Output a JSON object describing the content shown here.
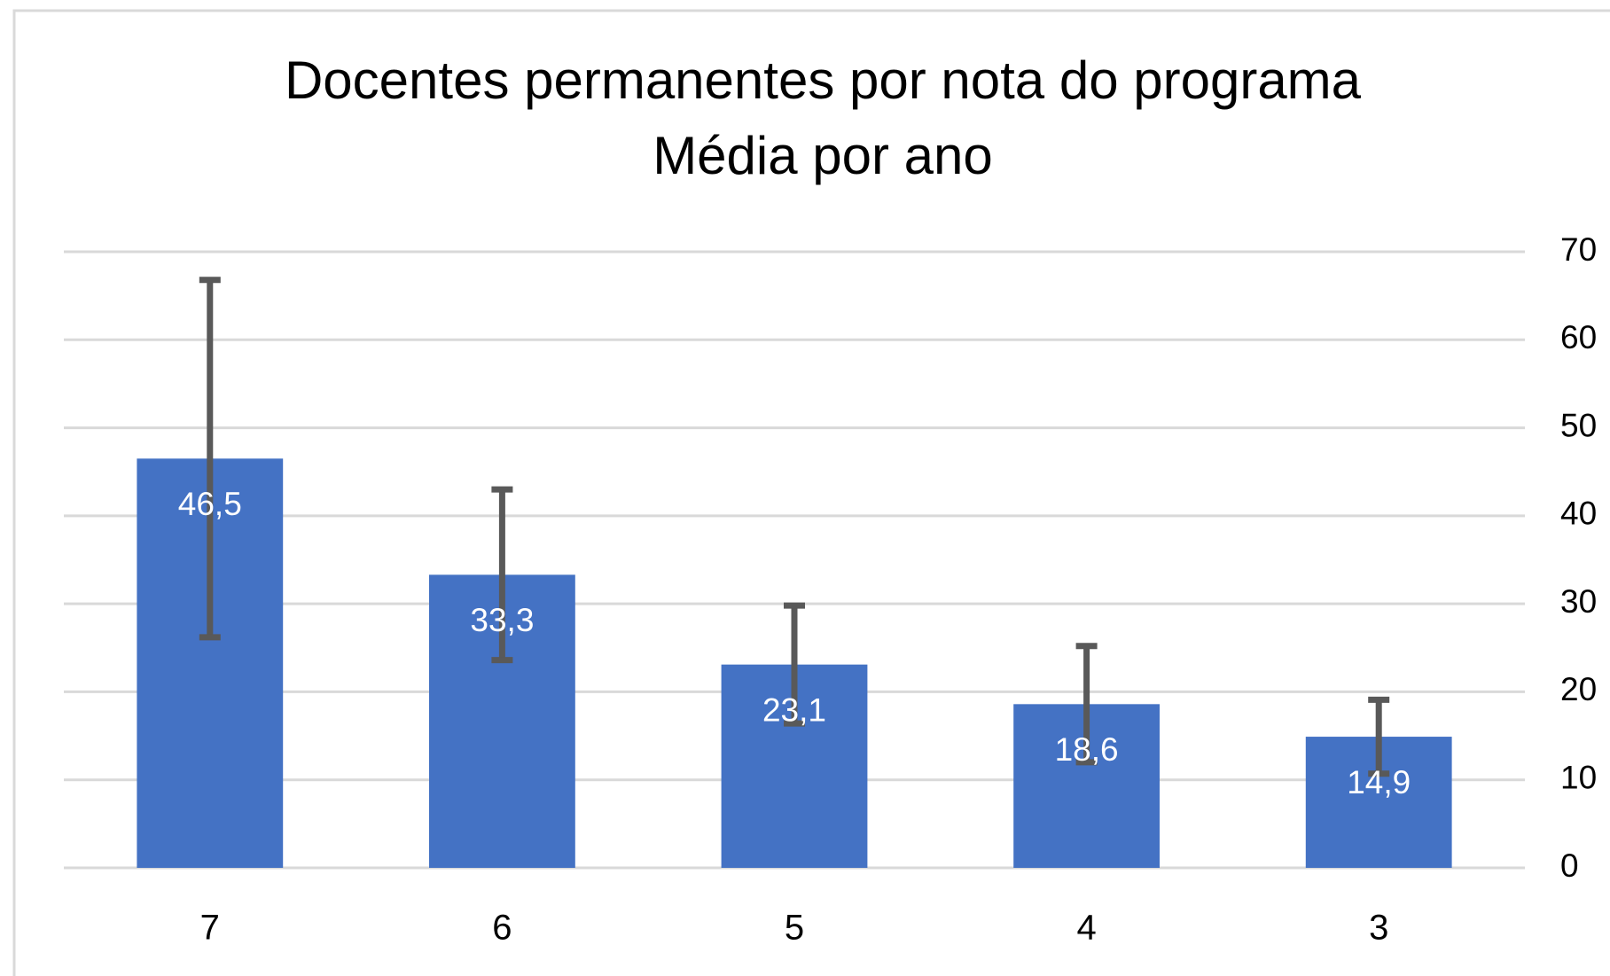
{
  "chart_data": {
    "type": "bar",
    "title": "Docentes permanentes por nota do programa",
    "subtitle": "Média por ano",
    "categories": [
      "7",
      "6",
      "5",
      "4",
      "3"
    ],
    "values": [
      46.5,
      33.3,
      23.1,
      18.6,
      14.9
    ],
    "value_labels": [
      "46,5",
      "33,3",
      "23,1",
      "18,6",
      "14,9"
    ],
    "errors": [
      20.3,
      9.7,
      6.7,
      6.6,
      4.2
    ],
    "color": "#4472c4",
    "error_color": "#595959",
    "ylim": [
      0,
      70
    ],
    "yticks": [
      0,
      10,
      20,
      30,
      40,
      50,
      60,
      70
    ],
    "y_axis_side": "right",
    "grid": true
  }
}
